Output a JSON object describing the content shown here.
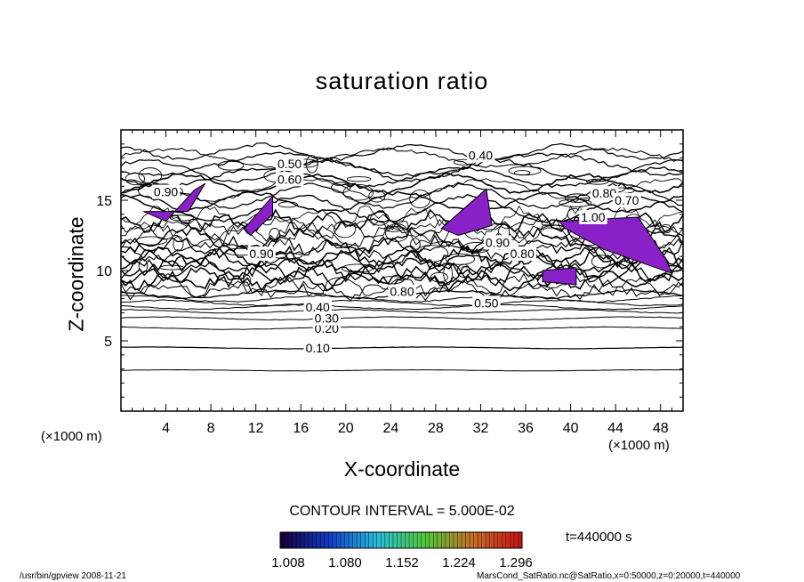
{
  "chart_data": {
    "type": "contour",
    "title": "saturation ratio",
    "xlabel": "X-coordinate",
    "ylabel": "Z-coordinate",
    "x_unit": "(×1000 m)",
    "z_unit": "(×1000 m)",
    "xlim": [
      0,
      50
    ],
    "ylim": [
      0,
      20
    ],
    "x_ticks": [
      4,
      8,
      12,
      16,
      20,
      24,
      28,
      32,
      36,
      40,
      44,
      48
    ],
    "y_ticks": [
      5,
      10,
      15
    ],
    "contour_labels": [
      {
        "text": "0.10",
        "x": 17.5,
        "z": 4.5
      },
      {
        "text": "0.20",
        "x": 18.3,
        "z": 5.9
      },
      {
        "text": "0.30",
        "x": 18.3,
        "z": 6.6
      },
      {
        "text": "0.40",
        "x": 17.5,
        "z": 7.4
      },
      {
        "text": "0.50",
        "x": 15.0,
        "z": 17.6
      },
      {
        "text": "0.60",
        "x": 15.0,
        "z": 16.5
      },
      {
        "text": "0.90",
        "x": 4.0,
        "z": 15.6
      },
      {
        "text": "0.90",
        "x": 12.5,
        "z": 11.2
      },
      {
        "text": "0.90",
        "x": 33.5,
        "z": 12.0
      },
      {
        "text": "0.80",
        "x": 35.7,
        "z": 11.2
      },
      {
        "text": "0.40",
        "x": 32.0,
        "z": 18.2
      },
      {
        "text": "0.80",
        "x": 43.0,
        "z": 15.5
      },
      {
        "text": "0.70",
        "x": 45.0,
        "z": 15.0
      },
      {
        "text": "1.00",
        "x": 42.0,
        "z": 13.8
      },
      {
        "text": "0.50",
        "x": 32.5,
        "z": 7.7
      },
      {
        "text": "0.80",
        "x": 25.0,
        "z": 8.5
      }
    ],
    "contour_levels": {
      "interval": 0.05
    },
    "supersaturated_regions": [
      {
        "x": [
          2.0,
          6.0,
          7.5,
          6.5,
          4.0,
          2.0
        ],
        "z": [
          14.2,
          14.2,
          16.2,
          15.7,
          13.5,
          14.2
        ]
      },
      {
        "x": [
          11.0,
          13.5,
          13.5,
          11.5
        ],
        "z": [
          13.0,
          15.3,
          14.0,
          12.5
        ]
      },
      {
        "x": [
          28.5,
          32.5,
          33.0,
          30.0
        ],
        "z": [
          13.0,
          15.8,
          13.2,
          12.5
        ]
      },
      {
        "x": [
          39.0,
          46.0,
          48.5,
          49.0,
          43.0,
          39.5
        ],
        "z": [
          13.5,
          13.8,
          10.8,
          9.8,
          11.5,
          13.0
        ]
      },
      {
        "x": [
          37.5,
          40.5,
          40.5,
          37.5
        ],
        "z": [
          9.2,
          9.0,
          10.2,
          10.0
        ]
      }
    ],
    "colorbar": {
      "min": 1.008,
      "max": 1.296,
      "tick_labels": [
        "1.008",
        "1.080",
        "1.152",
        "1.224",
        "1.296"
      ]
    }
  },
  "contour_interval_text": "CONTOUR INTERVAL = 5.000E-02",
  "timestamp_text": "t=440000 s",
  "footer": {
    "left": "/usr/bin/gpview   2008-11-21",
    "right": "MarsCond_SatRatio.nc@SatRatio,x=0:50000,z=0:20000,t=440000"
  },
  "colors": {
    "fill": "#8a20c8",
    "line": "#000000"
  }
}
